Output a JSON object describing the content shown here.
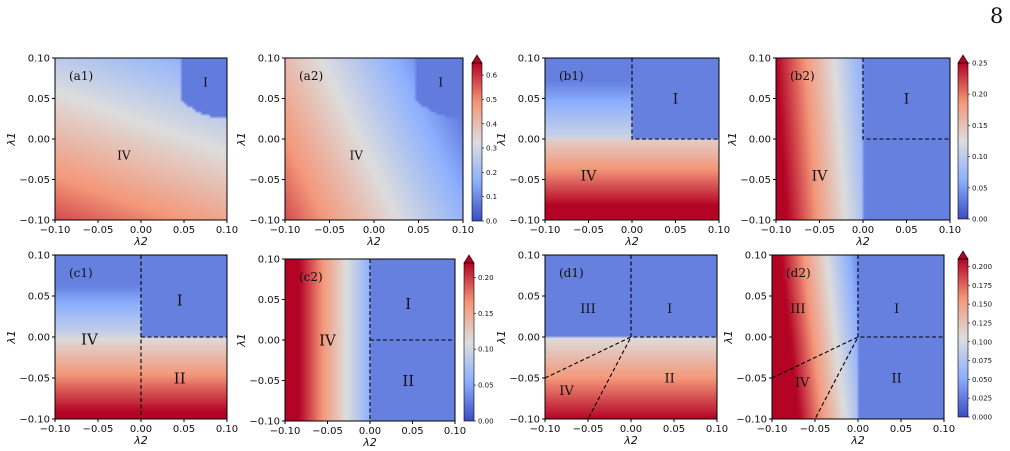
{
  "page_number": "8",
  "colors": {
    "colormap": [
      "#3b4cc0",
      "#8db0fe",
      "#dddddd",
      "#f4987a",
      "#b40426"
    ],
    "boundary": "#000000",
    "axes": "#000000"
  },
  "chart_data": [
    {
      "type": "heatmap",
      "label": "(a1)",
      "xlabel": "λ2",
      "ylabel": "λ1",
      "xlim": [
        -0.1,
        0.1
      ],
      "ylim": [
        -0.1,
        0.1
      ],
      "xticks": [
        "−0.10",
        "−0.05",
        "0.00",
        "0.05",
        "0.10"
      ],
      "yticks": [
        "0.10",
        "0.05",
        "0.00",
        "−0.05",
        "−0.10"
      ],
      "field": "a1",
      "vmin": 0,
      "vmax": 0.65,
      "regions": [
        {
          "name": "I",
          "x": 0.075,
          "y": 0.07
        },
        {
          "name": "IV",
          "x": -0.02,
          "y": -0.02
        }
      ],
      "boundaries": []
    },
    {
      "type": "heatmap",
      "label": "(a2)",
      "xlabel": "λ2",
      "ylabel": "λ1",
      "xlim": [
        -0.1,
        0.1
      ],
      "ylim": [
        -0.1,
        0.1
      ],
      "xticks": [
        "−0.10",
        "−0.05",
        "0.00",
        "0.05",
        "0.10"
      ],
      "yticks": [
        "0.10",
        "0.05",
        "0.00",
        "−0.05",
        "−0.10"
      ],
      "field": "a2",
      "vmin": 0,
      "vmax": 0.65,
      "regions": [
        {
          "name": "I",
          "x": 0.075,
          "y": 0.07
        },
        {
          "name": "IV",
          "x": -0.02,
          "y": -0.02
        }
      ],
      "boundaries": [],
      "colorbar": {
        "ticks": [
          "0.0",
          "0.1",
          "0.2",
          "0.3",
          "0.4",
          "0.5",
          "0.6"
        ],
        "values": [
          0,
          0.1,
          0.2,
          0.3,
          0.4,
          0.5,
          0.6
        ],
        "vmin": 0,
        "vmax": 0.65
      }
    },
    {
      "type": "heatmap",
      "label": "(b1)",
      "xlabel": "λ2",
      "ylabel": "λ1",
      "xlim": [
        -0.1,
        0.1
      ],
      "ylim": [
        -0.1,
        0.1
      ],
      "xticks": [
        "−0.10",
        "−0.05",
        "0.00",
        "0.05",
        "0.10"
      ],
      "yticks": [
        "0.10",
        "0.05",
        "0.00",
        "−0.05",
        "−0.10"
      ],
      "field": "b1",
      "vmin": 0,
      "vmax": 0.25,
      "regions": [
        {
          "name": "I",
          "x": 0.05,
          "y": 0.05
        },
        {
          "name": "IV",
          "x": -0.05,
          "y": -0.045
        }
      ],
      "boundaries": [
        [
          [
            0,
            0.1
          ],
          [
            0,
            0
          ],
          [
            0.1,
            0
          ]
        ]
      ]
    },
    {
      "type": "heatmap",
      "label": "(b2)",
      "xlabel": "λ2",
      "ylabel": "λ1",
      "xlim": [
        -0.1,
        0.1
      ],
      "ylim": [
        -0.1,
        0.1
      ],
      "xticks": [
        "−0.10",
        "−0.05",
        "0.00",
        "0.05",
        "0.10"
      ],
      "yticks": [
        "0.10",
        "0.05",
        "0.00",
        "−0.05",
        "−0.10"
      ],
      "field": "b2",
      "vmin": 0,
      "vmax": 0.25,
      "regions": [
        {
          "name": "I",
          "x": 0.05,
          "y": 0.05
        },
        {
          "name": "IV",
          "x": -0.05,
          "y": -0.045
        }
      ],
      "boundaries": [
        [
          [
            0,
            0.1
          ],
          [
            0,
            0
          ],
          [
            0.1,
            0
          ]
        ]
      ],
      "colorbar": {
        "ticks": [
          "0.00",
          "0.05",
          "0.10",
          "0.15",
          "0.20",
          "0.25"
        ],
        "values": [
          0,
          0.05,
          0.1,
          0.15,
          0.2,
          0.25
        ],
        "vmin": 0,
        "vmax": 0.25
      }
    },
    {
      "type": "heatmap",
      "label": "(c1)",
      "xlabel": "λ2",
      "ylabel": "λ1",
      "xlim": [
        -0.1,
        0.1
      ],
      "ylim": [
        -0.1,
        0.1
      ],
      "xticks": [
        "−0.10",
        "−0.05",
        "0.00",
        "0.05",
        "0.10"
      ],
      "yticks": [
        "0.10",
        "0.05",
        "0.00",
        "−0.05",
        "−0.10"
      ],
      "field": "c1",
      "vmin": 0,
      "vmax": 0.22,
      "regions": [
        {
          "name": "I",
          "x": 0.045,
          "y": 0.045
        },
        {
          "name": "IV",
          "x": -0.06,
          "y": -0.003
        },
        {
          "name": "II",
          "x": 0.045,
          "y": -0.05
        }
      ],
      "boundaries": [
        [
          [
            0,
            0.1
          ],
          [
            0,
            -0.1
          ]
        ],
        [
          [
            0,
            0
          ],
          [
            0.1,
            0
          ]
        ]
      ]
    },
    {
      "type": "heatmap",
      "label": "(c2)",
      "xlabel": "λ2",
      "ylabel": "λ1",
      "xlim": [
        -0.1,
        0.1
      ],
      "ylim": [
        -0.1,
        0.1
      ],
      "xticks": [
        "−0.10",
        "−0.05",
        "0.00",
        "0.05",
        "0.10"
      ],
      "yticks": [
        "0.10",
        "0.05",
        "0.00",
        "−0.05",
        "−0.10"
      ],
      "field": "c2",
      "vmin": 0,
      "vmax": 0.22,
      "regions": [
        {
          "name": "I",
          "x": 0.045,
          "y": 0.045
        },
        {
          "name": "IV",
          "x": -0.05,
          "y": 0.0
        },
        {
          "name": "II",
          "x": 0.045,
          "y": -0.05
        }
      ],
      "boundaries": [
        [
          [
            0,
            0.1
          ],
          [
            0,
            -0.1
          ]
        ],
        [
          [
            0,
            0
          ],
          [
            0.1,
            0
          ]
        ]
      ],
      "colorbar": {
        "ticks": [
          "0.00",
          "0.05",
          "0.10",
          "0.15",
          "0.20"
        ],
        "values": [
          0,
          0.05,
          0.1,
          0.15,
          0.2
        ],
        "vmin": 0,
        "vmax": 0.22
      }
    },
    {
      "type": "heatmap",
      "label": "(d1)",
      "xlabel": "λ2",
      "ylabel": "λ1",
      "xlim": [
        -0.1,
        0.1
      ],
      "ylim": [
        -0.1,
        0.1
      ],
      "xticks": [
        "−0.10",
        "−0.05",
        "0.00",
        "0.05",
        "0.10"
      ],
      "yticks": [
        "0.10",
        "0.05",
        "0.00",
        "−0.05",
        "−0.10"
      ],
      "field": "d1",
      "vmin": 0,
      "vmax": 0.21,
      "regions": [
        {
          "name": "III",
          "x": -0.05,
          "y": 0.035
        },
        {
          "name": "I",
          "x": 0.045,
          "y": 0.035
        },
        {
          "name": "IV",
          "x": -0.075,
          "y": -0.065
        },
        {
          "name": "II",
          "x": 0.045,
          "y": -0.05
        }
      ],
      "boundaries": [
        [
          [
            0,
            0.1
          ],
          [
            0,
            0
          ],
          [
            0.1,
            0
          ]
        ],
        [
          [
            -0.1,
            -0.05
          ],
          [
            0,
            0
          ],
          [
            -0.05,
            -0.1
          ]
        ]
      ]
    },
    {
      "type": "heatmap",
      "label": "(d2)",
      "xlabel": "λ2",
      "ylabel": "λ1",
      "xlim": [
        -0.1,
        0.1
      ],
      "ylim": [
        -0.1,
        0.1
      ],
      "xticks": [
        "−0.10",
        "−0.05",
        "0.00",
        "0.05",
        "0.10"
      ],
      "yticks": [
        "0.10",
        "0.05",
        "0.00",
        "−0.05",
        "−0.10"
      ],
      "field": "d2",
      "vmin": 0,
      "vmax": 0.21,
      "regions": [
        {
          "name": "III",
          "x": -0.07,
          "y": 0.035
        },
        {
          "name": "I",
          "x": 0.045,
          "y": 0.035
        },
        {
          "name": "IV",
          "x": -0.065,
          "y": -0.055
        },
        {
          "name": "II",
          "x": 0.045,
          "y": -0.05
        }
      ],
      "boundaries": [
        [
          [
            0,
            0.1
          ],
          [
            0,
            0
          ],
          [
            0.1,
            0
          ]
        ],
        [
          [
            -0.1,
            -0.05
          ],
          [
            0,
            0
          ],
          [
            -0.05,
            -0.1
          ]
        ]
      ],
      "colorbar": {
        "ticks": [
          "0.000",
          "0.025",
          "0.050",
          "0.075",
          "0.100",
          "0.125",
          "0.150",
          "0.175",
          "0.200"
        ],
        "values": [
          0,
          0.025,
          0.05,
          0.075,
          0.1,
          0.125,
          0.15,
          0.175,
          0.2
        ],
        "vmin": 0,
        "vmax": 0.21
      }
    }
  ]
}
